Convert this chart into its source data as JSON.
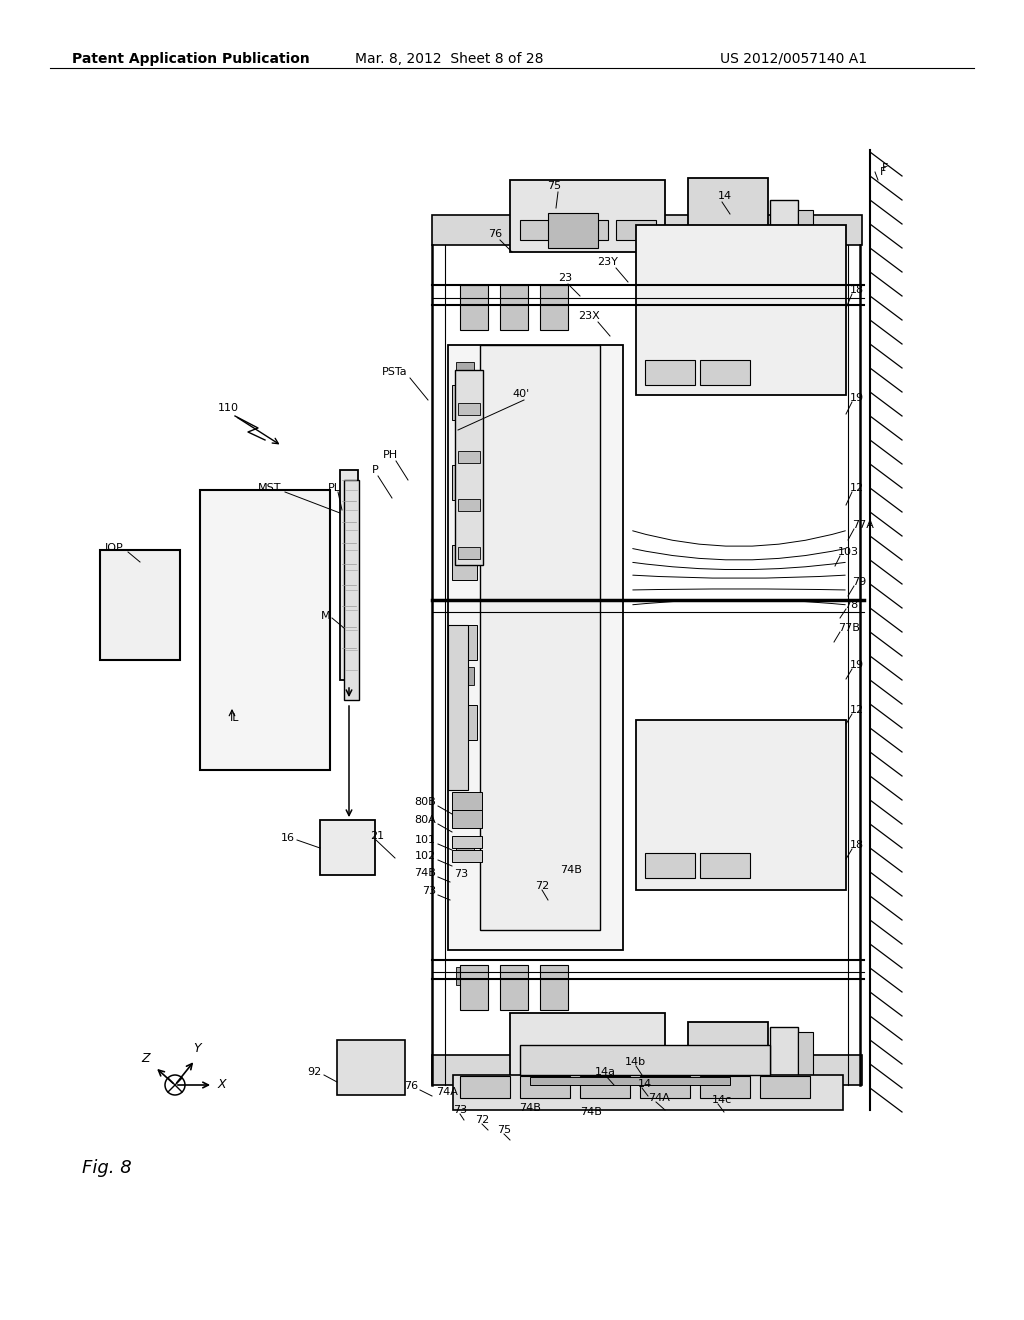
{
  "bg_color": "#ffffff",
  "header_left": "Patent Application Publication",
  "header_center": "Mar. 8, 2012  Sheet 8 of 28",
  "header_right": "US 2012/0057140 A1",
  "fig_label": "Fig. 8"
}
